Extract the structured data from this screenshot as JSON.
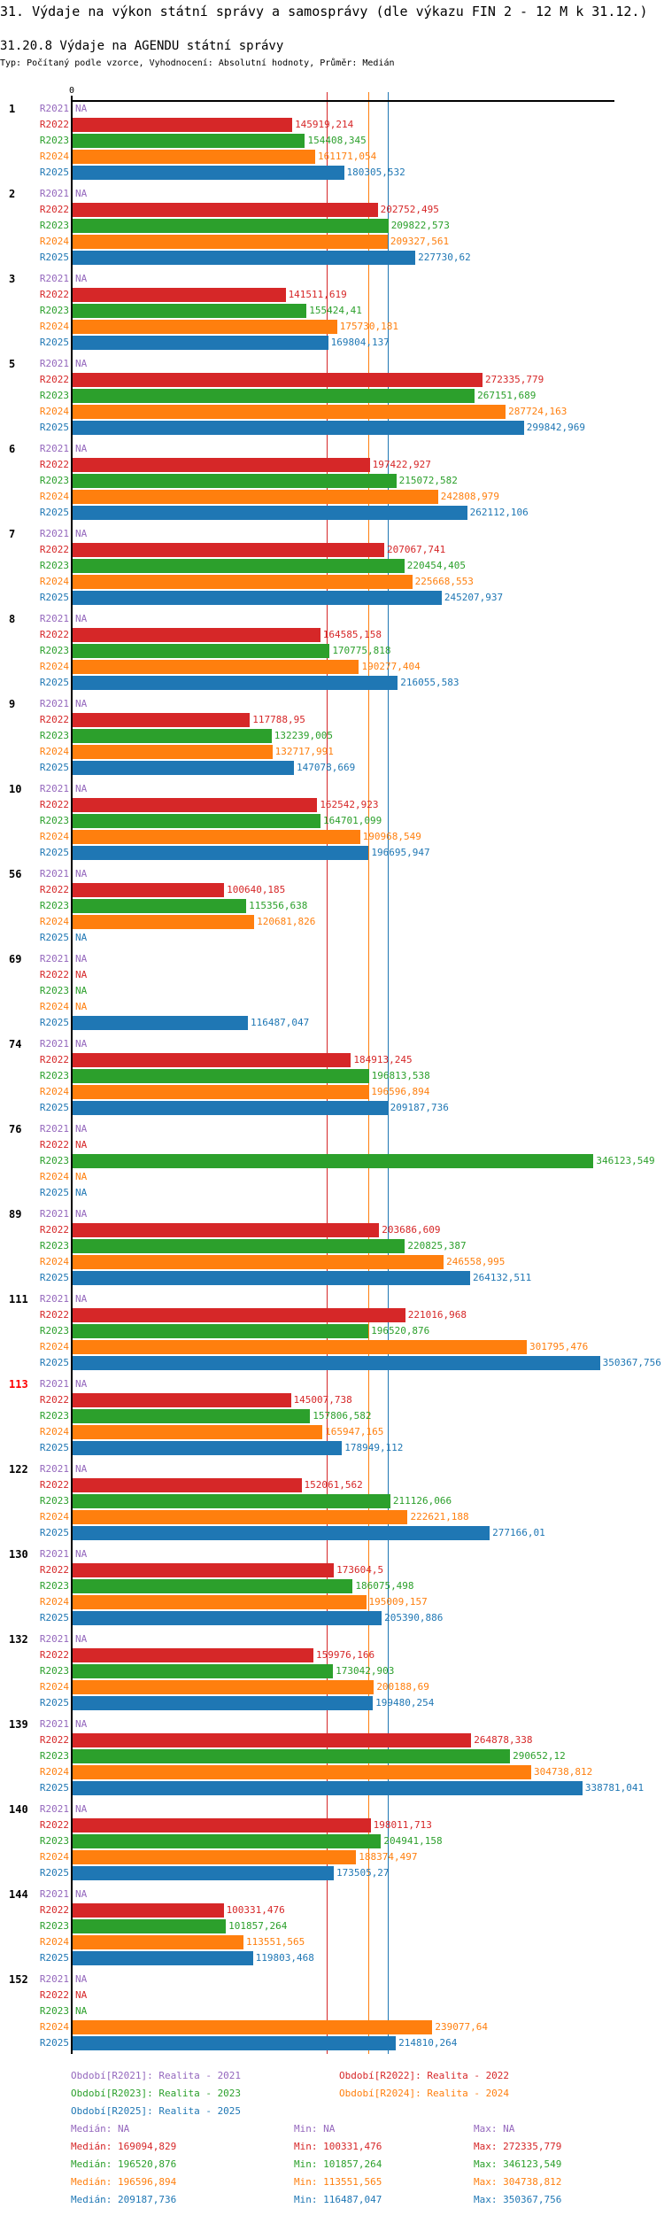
{
  "header": {
    "title": "31. Výdaje na výkon státní správy a samosprávy (dle výkazu FIN 2 - 12 M k 31.12.)",
    "subtitle": "31.20.8 Výdaje na AGENDU státní správy",
    "meta": "Typ: Počítaný podle vzorce, Vyhodnocení: Absolutní hodnoty, Průměr: Medián"
  },
  "chart_data": {
    "type": "bar",
    "orientation": "horizontal",
    "title": "31.20.8 Výdaje na AGENDU státní správy",
    "axis_zero_label": "0",
    "na_label": "NA",
    "series_names": [
      "R2021",
      "R2022",
      "R2023",
      "R2024",
      "R2025"
    ],
    "colors": {
      "R2021": "#9467bd",
      "R2022": "#d62728",
      "R2023": "#2ca02c",
      "R2024": "#ff7f0e",
      "R2025": "#1f77b4"
    },
    "highlight_color": "#ff0000",
    "groups": [
      {
        "label": "1",
        "values": [
          null,
          "145919,214",
          "154408,345",
          "161171,054",
          "180305,532"
        ]
      },
      {
        "label": "2",
        "values": [
          null,
          "202752,495",
          "209822,573",
          "209327,561",
          "227730,62"
        ]
      },
      {
        "label": "3",
        "values": [
          null,
          "141511,619",
          "155424,41",
          "175730,181",
          "169804,137"
        ]
      },
      {
        "label": "5",
        "values": [
          null,
          "272335,779",
          "267151,689",
          "287724,163",
          "299842,969"
        ]
      },
      {
        "label": "6",
        "values": [
          null,
          "197422,927",
          "215072,582",
          "242808,979",
          "262112,106"
        ]
      },
      {
        "label": "7",
        "values": [
          null,
          "207067,741",
          "220454,405",
          "225668,553",
          "245207,937"
        ]
      },
      {
        "label": "8",
        "values": [
          null,
          "164585,158",
          "170775,818",
          "190277,404",
          "216055,583"
        ]
      },
      {
        "label": "9",
        "values": [
          null,
          "117788,95",
          "132239,005",
          "132717,991",
          "147078,669"
        ]
      },
      {
        "label": "10",
        "values": [
          null,
          "162542,923",
          "164701,099",
          "190968,549",
          "196695,947"
        ]
      },
      {
        "label": "56",
        "values": [
          null,
          "100640,185",
          "115356,638",
          "120681,826",
          null
        ]
      },
      {
        "label": "69",
        "values": [
          null,
          null,
          null,
          null,
          "116487,047"
        ]
      },
      {
        "label": "74",
        "values": [
          null,
          "184913,245",
          "196813,538",
          "196596,894",
          "209187,736"
        ]
      },
      {
        "label": "76",
        "values": [
          null,
          null,
          "346123,549",
          null,
          null
        ]
      },
      {
        "label": "89",
        "values": [
          null,
          "203686,609",
          "220825,387",
          "246558,995",
          "264132,511"
        ]
      },
      {
        "label": "111",
        "values": [
          null,
          "221016,968",
          "196520,876",
          "301795,476",
          "350367,756"
        ]
      },
      {
        "label": "113",
        "highlight": true,
        "values": [
          null,
          "145007,738",
          "157806,582",
          "165947,165",
          "178949,112"
        ]
      },
      {
        "label": "122",
        "values": [
          null,
          "152061,562",
          "211126,066",
          "222621,188",
          "277166,01"
        ]
      },
      {
        "label": "130",
        "values": [
          null,
          "173604,5",
          "186075,498",
          "195009,157",
          "205390,886"
        ]
      },
      {
        "label": "132",
        "values": [
          null,
          "159976,166",
          "173042,903",
          "200188,69",
          "199480,254"
        ]
      },
      {
        "label": "139",
        "values": [
          null,
          "264878,338",
          "290652,12",
          "304738,812",
          "338781,041"
        ]
      },
      {
        "label": "140",
        "values": [
          null,
          "198011,713",
          "204941,158",
          "188374,497",
          "173505,27"
        ]
      },
      {
        "label": "144",
        "values": [
          null,
          "100331,476",
          "101857,264",
          "113551,565",
          "119803,468"
        ]
      },
      {
        "label": "152",
        "values": [
          null,
          null,
          null,
          "239077,64",
          "214810,264"
        ]
      }
    ],
    "medians": [
      null,
      169094.829,
      196520.876,
      196596.894,
      209187.736
    ]
  },
  "legend": {
    "periods": [
      "Období[R2021]: Realita - 2021",
      "Období[R2022]: Realita - 2022",
      "Období[R2023]: Realita - 2023",
      "Období[R2024]: Realita - 2024",
      "Období[R2025]: Realita - 2025"
    ],
    "stats": [
      {
        "median": "Medián: NA",
        "min": "Min: NA",
        "max": "Max: NA"
      },
      {
        "median": "Medián: 169094,829",
        "min": "Min: 100331,476",
        "max": "Max: 272335,779"
      },
      {
        "median": "Medián: 196520,876",
        "min": "Min: 101857,264",
        "max": "Max: 346123,549"
      },
      {
        "median": "Medián: 196596,894",
        "min": "Min: 113551,565",
        "max": "Max: 304738,812"
      },
      {
        "median": "Medián: 209187,736",
        "min": "Min: 116487,047",
        "max": "Max: 350367,756"
      }
    ]
  }
}
